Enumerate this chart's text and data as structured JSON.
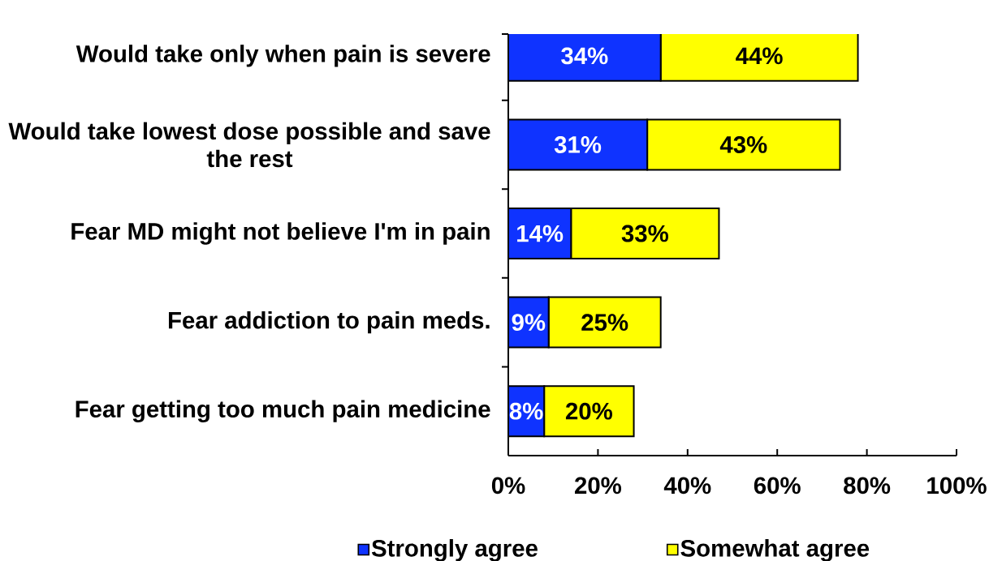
{
  "chart_data": {
    "type": "bar",
    "orientation": "horizontal",
    "stacked": true,
    "categories": [
      "Would take only when pain is severe",
      "Would take lowest dose possible and save the rest",
      "Fear MD might not believe I'm in pain",
      "Fear addiction to pain meds.",
      "Fear getting too much pain medicine"
    ],
    "series": [
      {
        "name": "Strongly agree",
        "color": "#0f33ff",
        "values": [
          34,
          31,
          14,
          9,
          8
        ],
        "value_labels": [
          "34%",
          "31%",
          "14%",
          "9%",
          "8%"
        ]
      },
      {
        "name": "Somewhat agree",
        "color": "#ffff00",
        "values": [
          44,
          43,
          33,
          25,
          20
        ],
        "value_labels": [
          "44%",
          "43%",
          "33%",
          "25%",
          "20%"
        ]
      }
    ],
    "xlim": [
      0,
      100
    ],
    "xticks": [
      {
        "value": 0,
        "label": "0%"
      },
      {
        "value": 20,
        "label": "20%"
      },
      {
        "value": 40,
        "label": "40%"
      },
      {
        "value": 60,
        "label": "60%"
      },
      {
        "value": 80,
        "label": "80%"
      },
      {
        "value": 100,
        "label": "100%"
      }
    ],
    "legend": "bottom"
  }
}
